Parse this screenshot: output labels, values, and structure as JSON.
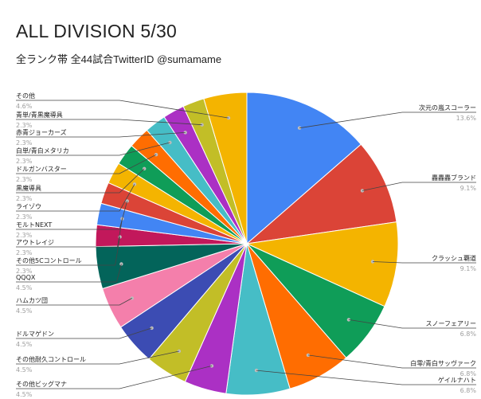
{
  "chart_data": {
    "type": "pie",
    "title": "ALL DIVISION 5/30",
    "subtitle": "全ランク帯 全44試合TwitterID @sumamame",
    "slices": [
      {
        "label": "次元の嵐スコーラー",
        "percent_label": "13.6%",
        "value": 13.6,
        "color": "#4285f4",
        "side": "right"
      },
      {
        "label": "轟轟轟ブランド",
        "percent_label": "9.1%",
        "value": 9.1,
        "color": "#db4437",
        "side": "right"
      },
      {
        "label": "クラッシュ覇道",
        "percent_label": "9.1%",
        "value": 9.1,
        "color": "#f4b400",
        "side": "right"
      },
      {
        "label": "スノーフェアリー",
        "percent_label": "6.8%",
        "value": 6.8,
        "color": "#0f9d58",
        "side": "right"
      },
      {
        "label": "白零/青白サッヴァーク",
        "percent_label": "6.8%",
        "value": 6.8,
        "color": "#ff6d01",
        "side": "right"
      },
      {
        "label": "ゲイルナハト",
        "percent_label": "6.8%",
        "value": 6.8,
        "color": "#46bdc6",
        "side": "right"
      },
      {
        "label": "その他ビッグマナ",
        "percent_label": "4.5%",
        "value": 4.5,
        "color": "#ab30c4",
        "side": "left"
      },
      {
        "label": "その他耐久コントロール",
        "percent_label": "4.5%",
        "value": 4.5,
        "color": "#c2be27",
        "side": "left"
      },
      {
        "label": "ドルマゲドン",
        "percent_label": "4.5%",
        "value": 4.5,
        "color": "#3c4cb3",
        "side": "left"
      },
      {
        "label": "ハムカツ団",
        "percent_label": "4.5%",
        "value": 4.5,
        "color": "#f47fab",
        "side": "left"
      },
      {
        "label": "QQQX",
        "percent_label": "4.5%",
        "value": 4.5,
        "color": "#03645a",
        "side": "left"
      },
      {
        "label": "その他5Cコントロール",
        "percent_label": "2.3%",
        "value": 2.3,
        "color": "#c2185b",
        "side": "left"
      },
      {
        "label": "アウトレイジ",
        "percent_label": "2.3%",
        "value": 2.3,
        "color": "#4285f4",
        "side": "left"
      },
      {
        "label": "モルトNEXT",
        "percent_label": "2.3%",
        "value": 2.3,
        "color": "#db4437",
        "side": "left"
      },
      {
        "label": "ライゾウ",
        "percent_label": "2.3%",
        "value": 2.3,
        "color": "#f4b400",
        "side": "left"
      },
      {
        "label": "黒魔導具",
        "percent_label": "2.3%",
        "value": 2.3,
        "color": "#0f9d58",
        "side": "left"
      },
      {
        "label": "ドルガンバスター",
        "percent_label": "2.3%",
        "value": 2.3,
        "color": "#ff6d01",
        "side": "left"
      },
      {
        "label": "白単/青白メタリカ",
        "percent_label": "2.3%",
        "value": 2.3,
        "color": "#46bdc6",
        "side": "left"
      },
      {
        "label": "赤青ジョーカーズ",
        "percent_label": "2.3%",
        "value": 2.3,
        "color": "#ab30c4",
        "side": "left"
      },
      {
        "label": "青単/青黒魔導具",
        "percent_label": "2.3%",
        "value": 2.3,
        "color": "#c2be27",
        "side": "left"
      },
      {
        "label": "その他",
        "percent_label": "4.6%",
        "value": 4.6,
        "color": "#f4b400",
        "side": "left"
      }
    ]
  }
}
